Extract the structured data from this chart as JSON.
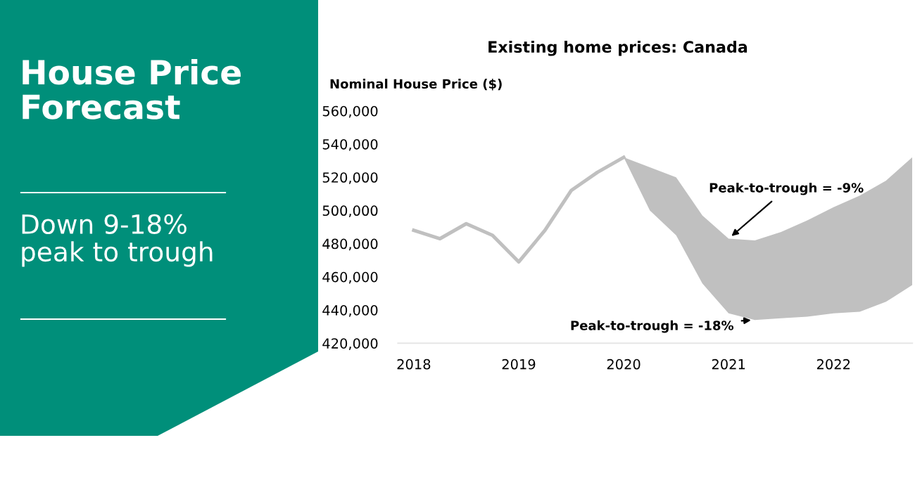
{
  "chart_data": {
    "type": "line",
    "title": "Existing home prices: Canada",
    "ylabel": "Nominal House Price ($)",
    "x": [
      2018,
      2018.25,
      2018.5,
      2018.75,
      2019,
      2019.25,
      2019.5,
      2019.75,
      2020,
      2020.25,
      2020.5,
      2020.75,
      2021,
      2021.25,
      2021.5,
      2021.75,
      2022,
      2022.25,
      2022.5,
      2022.75
    ],
    "series": [
      {
        "color": "#c0c0c0",
        "values": [
          488000,
          483000,
          492000,
          485000,
          469000,
          488000,
          512000,
          523000,
          532000,
          null,
          null,
          null,
          null,
          null,
          null,
          null,
          null,
          null,
          null,
          null
        ],
        "lower": [
          null,
          null,
          null,
          null,
          null,
          null,
          null,
          null,
          532000,
          500000,
          485000,
          456000,
          438000,
          434000,
          435000,
          436000,
          438000,
          439000,
          445000,
          455000
        ],
        "upper": [
          null,
          null,
          null,
          null,
          null,
          null,
          null,
          null,
          532000,
          526000,
          520000,
          497000,
          483000,
          482000,
          487000,
          494000,
          502000,
          509000,
          518000,
          532000
        ]
      }
    ],
    "xlim": [
      2017.85,
      2022.75
    ],
    "xticks": [
      2018,
      2019,
      2020,
      2021,
      2022
    ],
    "ylim": [
      420000,
      560000
    ],
    "yticks": [
      {
        "value": 420000,
        "label": "420,000"
      },
      {
        "value": 440000,
        "label": "440,000"
      },
      {
        "value": 460000,
        "label": "460,000"
      },
      {
        "value": 480000,
        "label": "480,000"
      },
      {
        "value": 500000,
        "label": "500,000"
      },
      {
        "value": 520000,
        "label": "520,000"
      },
      {
        "value": 540000,
        "label": "540,000"
      },
      {
        "value": 560000,
        "label": "560,000"
      }
    ],
    "grid": false,
    "legend": false,
    "annotations": [
      "House Price\nForecast",
      "Down 9-18%\npeak to trough",
      {
        "text": "Peak-to-trough = -9%",
        "x": 2021,
        "y": 483000
      },
      {
        "text": "Peak-to-trough = -18%",
        "x": 2021.25,
        "y": 434000
      }
    ]
  }
}
